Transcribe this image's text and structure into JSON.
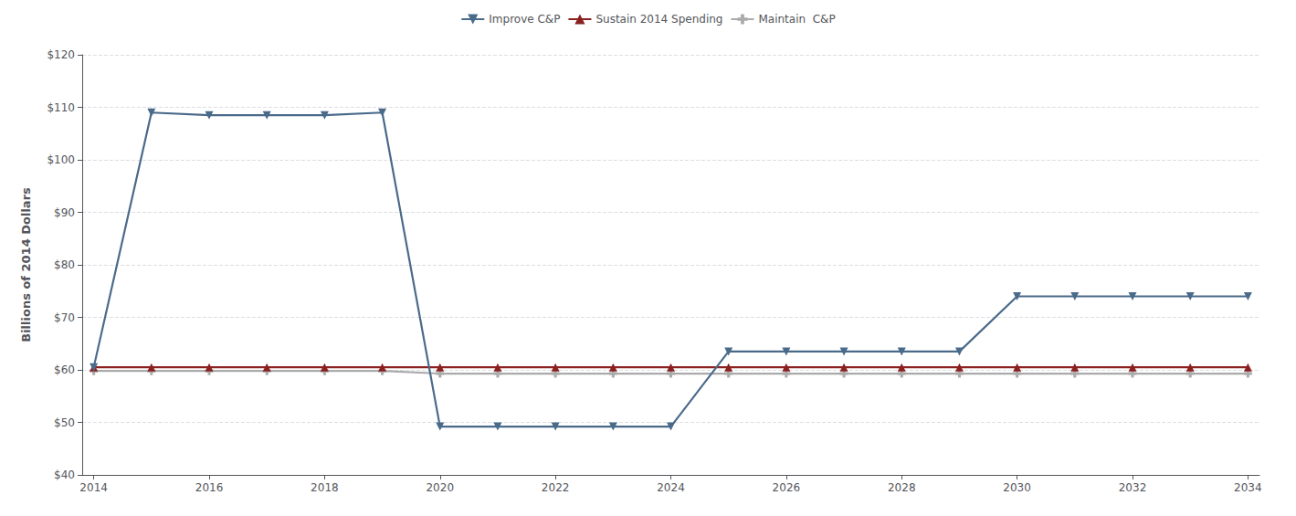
{
  "chart_data": {
    "type": "line",
    "y_label": "Billions of 2014 Dollars",
    "x": [
      2014,
      2015,
      2016,
      2017,
      2018,
      2019,
      2020,
      2021,
      2022,
      2023,
      2024,
      2025,
      2026,
      2027,
      2028,
      2029,
      2030,
      2031,
      2032,
      2033,
      2034
    ],
    "series": [
      {
        "name": "Improve C&P",
        "color": "#4a6a8a",
        "marker": "triangle_down",
        "values": [
          60.5,
          109.0,
          108.5,
          108.5,
          108.5,
          109.0,
          49.2,
          49.2,
          49.2,
          49.2,
          49.2,
          63.5,
          63.5,
          63.5,
          63.5,
          63.5,
          74.0,
          74.0,
          74.0,
          74.0,
          74.0
        ]
      },
      {
        "name": "Sustain 2014 Spending",
        "color": "#8b2020",
        "marker": "triangle_up",
        "values": [
          60.5,
          60.5,
          60.5,
          60.5,
          60.5,
          60.5,
          60.5,
          60.5,
          60.5,
          60.5,
          60.5,
          60.5,
          60.5,
          60.5,
          60.5,
          60.5,
          60.5,
          60.5,
          60.5,
          60.5,
          60.5
        ]
      },
      {
        "name": "Maintain  C&P",
        "color": "#aaaaaa",
        "marker": "plus",
        "values": [
          59.8,
          59.8,
          59.8,
          59.8,
          59.8,
          59.8,
          59.3,
          59.3,
          59.3,
          59.3,
          59.3,
          59.3,
          59.3,
          59.3,
          59.3,
          59.3,
          59.3,
          59.3,
          59.3,
          59.3,
          59.3
        ]
      }
    ],
    "xlim": [
      2013.8,
      2034.2
    ],
    "xticks": [
      2014,
      2016,
      2018,
      2020,
      2022,
      2024,
      2026,
      2028,
      2030,
      2032,
      2034
    ],
    "ylim": [
      40,
      120
    ],
    "yticks": [
      {
        "value": 40,
        "label": "$40"
      },
      {
        "value": 50,
        "label": "$50"
      },
      {
        "value": 60,
        "label": "$60"
      },
      {
        "value": 70,
        "label": "$70"
      },
      {
        "value": 80,
        "label": "$80"
      },
      {
        "value": 90,
        "label": "$90"
      },
      {
        "value": 100,
        "label": "$100"
      },
      {
        "value": 110,
        "label": "$110"
      },
      {
        "value": 120,
        "label": "$120"
      }
    ],
    "grid": "y",
    "legend": "top"
  }
}
